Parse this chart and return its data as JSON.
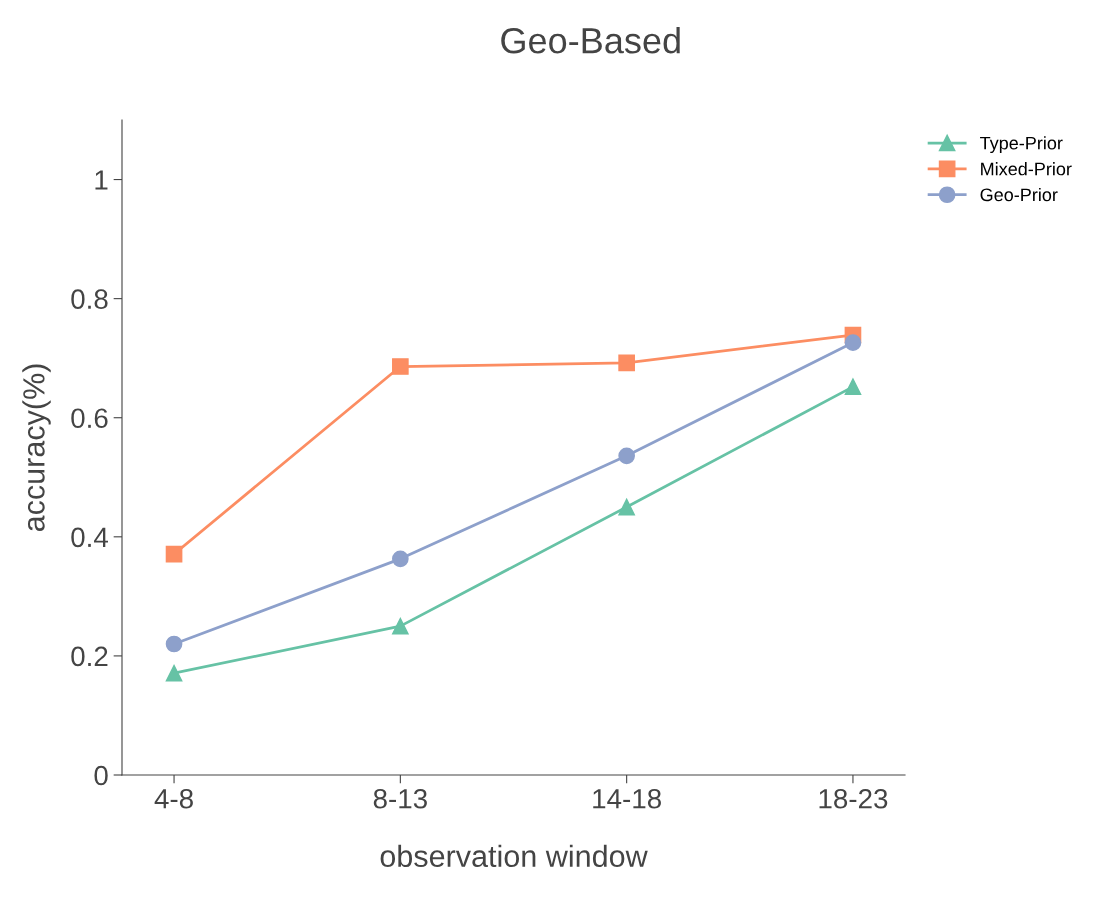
{
  "chart_data": {
    "type": "line",
    "title": "Geo-Based",
    "xlabel": "observation window",
    "ylabel": "accuracy(%)",
    "categories": [
      "4-8",
      "8-13",
      "14-18",
      "18-23"
    ],
    "series": [
      {
        "name": "Type-Prior",
        "color": "#66c2a5",
        "marker": "triangle",
        "values": [
          0.171,
          0.25,
          0.45,
          0.652
        ]
      },
      {
        "name": "Mixed-Prior",
        "color": "#fc8d62",
        "marker": "square",
        "values": [
          0.371,
          0.686,
          0.692,
          0.739
        ]
      },
      {
        "name": "Geo-Prior",
        "color": "#8da0cb",
        "marker": "circle",
        "values": [
          0.22,
          0.363,
          0.536,
          0.726
        ]
      }
    ],
    "ylim": [
      0,
      1.1
    ],
    "yticks": [
      0,
      0.2,
      0.4,
      0.6,
      0.8,
      1
    ],
    "grid": false,
    "legend": "top right",
    "line_style": "solid"
  }
}
